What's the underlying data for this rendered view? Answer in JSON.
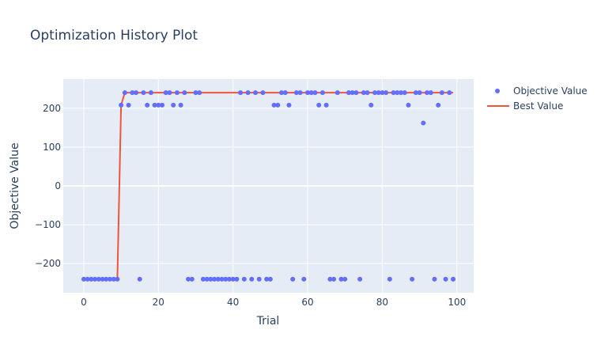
{
  "chart_data": {
    "type": "scatter",
    "title": "Optimization History Plot",
    "xlabel": "Trial",
    "ylabel": "Objective Value",
    "xlim": [
      -5.5,
      104.5
    ],
    "ylim": [
      -275,
      275
    ],
    "xticks": [
      0,
      20,
      40,
      60,
      80,
      100
    ],
    "yticks": [
      -200,
      -100,
      0,
      100,
      200
    ],
    "ytick_labels": [
      "−200",
      "−100",
      "0",
      "100",
      "200"
    ],
    "grid": true,
    "legend_position": "top-right",
    "series": [
      {
        "name": "Objective Value",
        "type": "scatter",
        "color": "#636efa",
        "x": [
          0,
          1,
          2,
          3,
          4,
          5,
          6,
          7,
          8,
          9,
          10,
          11,
          12,
          13,
          14,
          15,
          16,
          17,
          18,
          19,
          20,
          21,
          22,
          23,
          24,
          25,
          26,
          27,
          28,
          29,
          30,
          31,
          32,
          33,
          34,
          35,
          36,
          37,
          38,
          39,
          40,
          41,
          42,
          43,
          44,
          45,
          46,
          47,
          48,
          49,
          50,
          51,
          52,
          53,
          54,
          55,
          56,
          57,
          58,
          59,
          60,
          61,
          62,
          63,
          64,
          65,
          66,
          67,
          68,
          69,
          70,
          71,
          72,
          73,
          74,
          75,
          76,
          77,
          78,
          79,
          80,
          81,
          82,
          83,
          84,
          85,
          86,
          87,
          88,
          89,
          90,
          91,
          92,
          93,
          94,
          95,
          96,
          97,
          98,
          99
        ],
        "y": [
          -240,
          -240,
          -240,
          -240,
          -240,
          -240,
          -240,
          -240,
          -240,
          -240,
          208,
          240,
          208,
          240,
          240,
          -240,
          240,
          208,
          240,
          208,
          208,
          208,
          240,
          240,
          208,
          240,
          208,
          240,
          -240,
          -240,
          240,
          240,
          -240,
          -240,
          -240,
          -240,
          -240,
          -240,
          -240,
          -240,
          -240,
          -240,
          240,
          -240,
          240,
          -240,
          240,
          -240,
          240,
          -240,
          -240,
          208,
          208,
          240,
          240,
          208,
          -240,
          240,
          240,
          -240,
          240,
          240,
          240,
          208,
          240,
          208,
          -240,
          -240,
          240,
          -240,
          -240,
          240,
          240,
          240,
          -240,
          240,
          240,
          208,
          240,
          240,
          240,
          240,
          -240,
          240,
          240,
          240,
          240,
          208,
          -240,
          240,
          240,
          162,
          240,
          240,
          -240,
          208,
          240,
          -240,
          240,
          -240
        ]
      },
      {
        "name": "Best Value",
        "type": "line",
        "color": "#ef553b",
        "x": [
          0,
          1,
          2,
          3,
          4,
          5,
          6,
          7,
          8,
          9,
          10,
          11,
          12,
          13,
          14,
          15,
          16,
          17,
          18,
          19,
          20,
          21,
          22,
          23,
          24,
          25,
          26,
          27,
          28,
          29,
          30,
          31,
          32,
          33,
          34,
          35,
          36,
          37,
          38,
          39,
          40,
          41,
          42,
          43,
          44,
          45,
          46,
          47,
          48,
          49,
          50,
          51,
          52,
          53,
          54,
          55,
          56,
          57,
          58,
          59,
          60,
          61,
          62,
          63,
          64,
          65,
          66,
          67,
          68,
          69,
          70,
          71,
          72,
          73,
          74,
          75,
          76,
          77,
          78,
          79,
          80,
          81,
          82,
          83,
          84,
          85,
          86,
          87,
          88,
          89,
          90,
          91,
          92,
          93,
          94,
          95,
          96,
          97,
          98,
          99
        ],
        "y": [
          -240,
          -240,
          -240,
          -240,
          -240,
          -240,
          -240,
          -240,
          -240,
          -240,
          208,
          240,
          240,
          240,
          240,
          240,
          240,
          240,
          240,
          240,
          240,
          240,
          240,
          240,
          240,
          240,
          240,
          240,
          240,
          240,
          240,
          240,
          240,
          240,
          240,
          240,
          240,
          240,
          240,
          240,
          240,
          240,
          240,
          240,
          240,
          240,
          240,
          240,
          240,
          240,
          240,
          240,
          240,
          240,
          240,
          240,
          240,
          240,
          240,
          240,
          240,
          240,
          240,
          240,
          240,
          240,
          240,
          240,
          240,
          240,
          240,
          240,
          240,
          240,
          240,
          240,
          240,
          240,
          240,
          240,
          240,
          240,
          240,
          240,
          240,
          240,
          240,
          240,
          240,
          240,
          240,
          240,
          240,
          240,
          240,
          240,
          240,
          240,
          240,
          240
        ]
      }
    ]
  }
}
